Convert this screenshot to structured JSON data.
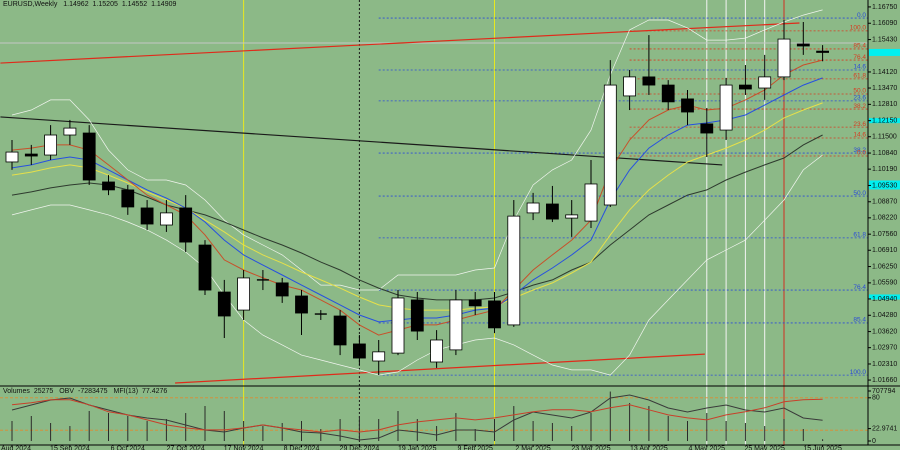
{
  "chart_data": {
    "type": "candlestick",
    "title": "EURUSD,Weekly",
    "categories": [
      "Aug 2024",
      null,
      null,
      "15 Sep 2024",
      null,
      null,
      "6 Oct 2024",
      null,
      null,
      "27 Oct 2024",
      null,
      null,
      "17 Nov 2024",
      null,
      null,
      "8 Dec 2024",
      null,
      null,
      "29 Dec 2024",
      null,
      null,
      "19 Jan 2025",
      null,
      null,
      "9 Feb 2025",
      null,
      null,
      "2 Mar 2025",
      null,
      null,
      "23 Mar 2025",
      null,
      null,
      "13 Apr 2025",
      null,
      null,
      "4 May 2025",
      null,
      null,
      "25 May 2025",
      null,
      null,
      "15 Jun 2025"
    ],
    "open": [
      1.1048,
      1.108,
      1.1076,
      1.1157,
      1.1165,
      1.0967,
      1.0935,
      1.0862,
      1.0793,
      1.0862,
      1.0712,
      1.0522,
      1.0449,
      1.0571,
      1.0559,
      1.0506,
      1.0433,
      1.0425,
      1.0312,
      1.0243,
      1.0275,
      1.049,
      1.0239,
      1.0288,
      1.049,
      1.0486,
      1.0389,
      1.0842,
      1.0878,
      1.0821,
      1.0809,
      1.0874,
      1.1315,
      1.1392,
      1.1359,
      1.1303,
      1.1202,
      1.1177,
      1.1359,
      1.1347,
      1.1392,
      1.1525,
      1.14962
    ],
    "high": [
      1.1137,
      1.1117,
      1.1197,
      1.1218,
      1.1197,
      1.0995,
      1.0955,
      1.0894,
      1.0894,
      1.0914,
      1.0732,
      1.0571,
      1.0611,
      1.0611,
      1.0579,
      1.053,
      1.0449,
      1.0449,
      1.0348,
      1.0328,
      1.053,
      1.0522,
      1.0368,
      1.053,
      1.0522,
      1.0522,
      1.0894,
      1.0923,
      1.0951,
      1.0894,
      1.1056,
      1.146,
      1.142,
      1.1561,
      1.1379,
      1.1339,
      1.1266,
      1.1388,
      1.144,
      1.1481,
      1.1622,
      1.1614,
      1.15205
    ],
    "low": [
      1.1016,
      1.1036,
      1.1056,
      1.1117,
      1.0955,
      1.0914,
      1.0834,
      1.0773,
      1.0765,
      1.0684,
      1.051,
      1.0336,
      1.0409,
      1.053,
      1.0478,
      1.0348,
      1.0409,
      1.0267,
      1.0227,
      1.0186,
      1.0267,
      1.0328,
      1.0215,
      1.0267,
      1.0429,
      1.0356,
      1.0381,
      1.0813,
      1.0805,
      1.0745,
      1.0781,
      1.0866,
      1.1258,
      1.1319,
      1.1258,
      1.1197,
      1.1068,
      1.1137,
      1.1319,
      1.1299,
      1.1379,
      1.1481,
      1.14552
    ],
    "close": [
      1.1088,
      1.1072,
      1.1157,
      1.1185,
      1.0975,
      1.0935,
      1.0866,
      1.0797,
      1.0842,
      1.0724,
      1.053,
      1.0425,
      1.0579,
      1.0567,
      1.0506,
      1.0437,
      1.0429,
      1.0308,
      1.0255,
      1.028,
      1.0498,
      1.0364,
      1.0328,
      1.049,
      1.0466,
      1.0377,
      1.0829,
      1.0882,
      1.0817,
      1.0834,
      1.0959,
      1.1359,
      1.1392,
      1.1359,
      1.1291,
      1.125,
      1.1165,
      1.1359,
      1.1343,
      1.1392,
      1.1545,
      1.1517,
      1.14909
    ],
    "up_color": "#ffffff",
    "down_color": "#000000",
    "ylim": [
      1.0146,
      1.1703
    ],
    "yticks": [
      {
        "value": 1.1675,
        "label": "1.16750"
      },
      {
        "value": 1.1609,
        "label": "1.16090"
      },
      {
        "value": 1.1543,
        "label": "1.15430"
      },
      {
        "value": 1.1412,
        "label": "1.14120"
      },
      {
        "value": 1.1347,
        "label": "1.13470"
      },
      {
        "value": 1.1281,
        "label": "1.12810"
      },
      {
        "value": 1.1215,
        "label": "1.12150"
      },
      {
        "value": 1.115,
        "label": "1.11500"
      },
      {
        "value": 1.1084,
        "label": "1.10840"
      },
      {
        "value": 1.1019,
        "label": "1.10190"
      },
      {
        "value": 1.0953,
        "label": "1.09530"
      },
      {
        "value": 1.0887,
        "label": "1.08870"
      },
      {
        "value": 1.0822,
        "label": "1.08220"
      },
      {
        "value": 1.0756,
        "label": "1.07560"
      },
      {
        "value": 1.0691,
        "label": "1.06910"
      },
      {
        "value": 1.0625,
        "label": "1.06250"
      },
      {
        "value": 1.0559,
        "label": "1.05590"
      },
      {
        "value": 1.0494,
        "label": "1.04940"
      },
      {
        "value": 1.0428,
        "label": "1.04280"
      },
      {
        "value": 1.0362,
        "label": "1.03620"
      },
      {
        "value": 1.0297,
        "label": "1.02970"
      },
      {
        "value": 1.0231,
        "label": "1.02310"
      },
      {
        "value": 1.0166,
        "label": "1.01660"
      }
    ],
    "grid": false,
    "lines": [
      {
        "color": "#f0f4ee",
        "values": [
          1.1238,
          1.1258,
          1.1299,
          1.1299,
          1.1218,
          1.1096,
          1.1016,
          1.0975,
          1.0975,
          1.0955,
          1.0894,
          1.0813,
          1.0753,
          1.0712,
          1.0672,
          1.0611,
          1.055,
          1.055,
          1.053,
          1.053,
          1.0591,
          1.0591,
          1.0591,
          1.0591,
          1.0611,
          1.0619,
          1.0813,
          1.0955,
          1.1016,
          1.1056,
          1.1177,
          1.14,
          1.1582,
          1.1622,
          1.1622,
          1.159,
          1.1541,
          1.1541,
          1.1549,
          1.1582,
          1.1614,
          1.1642,
          1.1663
        ]
      },
      {
        "color": "#f0f4ee",
        "values": [
          1.0834,
          1.0854,
          1.0874,
          1.0874,
          1.0854,
          1.0834,
          1.0805,
          1.0773,
          1.0732,
          1.0684,
          1.0619,
          1.051,
          1.0409,
          1.0348,
          1.0308,
          1.0267,
          1.0247,
          1.0227,
          1.0207,
          1.0186,
          1.0199,
          1.0247,
          1.0288,
          1.0308,
          1.0328,
          1.0336,
          1.0308,
          1.0267,
          1.0227,
          1.0207,
          1.0207,
          1.0186,
          1.0267,
          1.0409,
          1.049,
          1.0571,
          1.0652,
          1.0692,
          1.0732,
          1.0813,
          1.0894,
          1.1016,
          1.1076
        ]
      },
      {
        "color": "#2e3a2e",
        "values": [
          1.0914,
          1.0927,
          1.0943,
          1.0955,
          1.0963,
          1.0955,
          1.0935,
          1.0906,
          1.0874,
          1.0854,
          1.0834,
          1.0805,
          1.0773,
          1.0741,
          1.0712,
          1.068,
          1.0643,
          1.0611,
          1.0571,
          1.0538,
          1.051,
          1.0498,
          1.049,
          1.049,
          1.049,
          1.0498,
          1.0522,
          1.055,
          1.0571,
          1.0611,
          1.0643,
          1.0712,
          1.0773,
          1.0834,
          1.0874,
          1.0914,
          1.0935,
          1.0975,
          1.1007,
          1.1036,
          1.1064,
          1.1117,
          1.1157
        ]
      },
      {
        "color": "#e6e04a",
        "values": [
          1.0995,
          1.1007,
          1.1024,
          1.1036,
          1.1024,
          1.0995,
          1.0963,
          1.0927,
          1.0894,
          1.0862,
          1.0813,
          1.0765,
          1.0712,
          1.0672,
          1.0639,
          1.0603,
          1.0571,
          1.0538,
          1.0502,
          1.047,
          1.0457,
          1.0449,
          1.0449,
          1.0449,
          1.0457,
          1.0462,
          1.0498,
          1.053,
          1.0559,
          1.0599,
          1.0643,
          1.0753,
          1.0854,
          1.0935,
          1.0995,
          1.1048,
          1.1076,
          1.1104,
          1.1137,
          1.1177,
          1.1226,
          1.1258,
          1.1287
        ]
      },
      {
        "color": "#2750e0",
        "values": [
          1.1024,
          1.1036,
          1.1056,
          1.1068,
          1.1056,
          1.1016,
          1.0975,
          1.0935,
          1.0902,
          1.0862,
          1.0805,
          1.0732,
          1.0672,
          1.0631,
          1.0591,
          1.055,
          1.051,
          1.047,
          1.0429,
          1.0401,
          1.0409,
          1.0417,
          1.0417,
          1.0429,
          1.0449,
          1.0457,
          1.051,
          1.0571,
          1.0619,
          1.0672,
          1.0732,
          1.0894,
          1.1016,
          1.1104,
          1.1157,
          1.1197,
          1.1206,
          1.1218,
          1.1238,
          1.1278,
          1.1319,
          1.1359,
          1.1388
        ]
      },
      {
        "color": "#c8502a",
        "values": [
          1.1096,
          1.1104,
          1.1117,
          1.1117,
          1.1096,
          1.1036,
          1.0975,
          1.0914,
          1.0874,
          1.0834,
          1.0753,
          1.0652,
          1.0611,
          1.0579,
          1.055,
          1.053,
          1.049,
          1.0449,
          1.0389,
          1.0348,
          1.0368,
          1.0389,
          1.0389,
          1.0409,
          1.0429,
          1.0449,
          1.053,
          1.0611,
          1.0672,
          1.0732,
          1.0813,
          1.1016,
          1.1137,
          1.1218,
          1.1258,
          1.1278,
          1.1258,
          1.1266,
          1.1299,
          1.1339,
          1.14,
          1.144,
          1.146
        ]
      }
    ],
    "trendlines": [
      {
        "color": "#e02a1a",
        "points": [
          [
            -0.6,
            1.1448
          ],
          [
            40.8,
            1.161
          ]
        ]
      },
      {
        "color": "#e02a1a",
        "points": [
          [
            8.45,
            1.0154
          ],
          [
            35.9,
            1.0271
          ]
        ]
      },
      {
        "color": "#1a1a1a",
        "points": [
          [
            -0.6,
            1.123
          ],
          [
            36.8,
            1.1036
          ]
        ]
      }
    ],
    "vlines": [
      {
        "at": 12,
        "color": "#e8e820",
        "dash": false
      },
      {
        "at": 25,
        "color": "#e8e820",
        "dash": false
      },
      {
        "at": 18,
        "color": "#1a1a1a",
        "dash": true
      },
      {
        "at": 40,
        "color": "#d03020",
        "dash": false
      },
      {
        "at": 36,
        "color": "#f4f4f4",
        "dash": false
      },
      {
        "at": 37,
        "color": "#f4f4f4",
        "dash": false
      },
      {
        "at": 38,
        "color": "#f4f4f4",
        "dash": false
      },
      {
        "at": 39,
        "color": "#f4f4f4",
        "dash": false
      }
    ],
    "hlines": [
      {
        "value": 1.1529,
        "color": "#c4c8c4"
      }
    ],
    "axis_markers": {
      "color": "#00f0f0",
      "values": [
        1.1215,
        1.0963,
        1.0947,
        1.0502
      ]
    },
    "fib": [
      {
        "color": "#2a4ad8",
        "start": 19,
        "levels": [
          {
            "label": "0.0",
            "value": 1.163
          },
          {
            "label": "14.6",
            "value": 1.142
          },
          {
            "label": "23.6",
            "value": 1.1295
          },
          {
            "label": "38.2",
            "value": 1.1084
          },
          {
            "label": "50.0",
            "value": 1.091
          },
          {
            "label": "61.8",
            "value": 1.0741
          },
          {
            "label": "76.4",
            "value": 1.053
          },
          {
            "label": "85.4",
            "value": 1.0397
          },
          {
            "label": "100.0",
            "value": 1.0186
          }
        ]
      },
      {
        "color": "#d83a20",
        "start": 32,
        "levels": [
          {
            "label": "100.0",
            "value": 1.1578
          },
          {
            "label": "85.4",
            "value": 1.1505
          },
          {
            "label": "76.4",
            "value": 1.146
          },
          {
            "label": "61.8",
            "value": 1.1384
          },
          {
            "label": "50.0",
            "value": 1.1323
          },
          {
            "label": "38.2",
            "value": 1.1262
          },
          {
            "label": "23.6",
            "value": 1.1189
          },
          {
            "label": "14.6",
            "value": 1.1145
          },
          {
            "label": "0.0",
            "value": 1.1072
          }
        ]
      }
    ],
    "indicators": {
      "volume_label": "Volumes",
      "volume_color": "#2a2a2a",
      "volumes": [
        283000,
        354000,
        255000,
        212000,
        425000,
        396000,
        354000,
        283000,
        311000,
        396000,
        495000,
        425000,
        283000,
        212000,
        255000,
        283000,
        170000,
        311000,
        354000,
        311000,
        425000,
        311000,
        212000,
        396000,
        170000,
        311000,
        495000,
        283000,
        255000,
        212000,
        396000,
        700000,
        538000,
        495000,
        354000,
        283000,
        396000,
        283000,
        255000,
        212000,
        311000,
        170000,
        25275
      ],
      "vol_ylim": [
        0,
        707794
      ],
      "vol_ticks": [
        707794
      ],
      "obv_label": "OBV",
      "obv_color": "#3a3a3a",
      "obv": [
        -3520000,
        -1670000,
        190000,
        930000,
        -1670000,
        -3520000,
        -5370000,
        -6480000,
        -7220000,
        -9070000,
        -10930000,
        -11670000,
        -10190000,
        -9070000,
        -10190000,
        -11670000,
        -12040000,
        -13150000,
        -14630000,
        -13890000,
        -10930000,
        -11670000,
        -12780000,
        -10930000,
        -10930000,
        -11670000,
        -7220000,
        -4260000,
        -5370000,
        -6480000,
        -4260000,
        930000,
        2040000,
        190000,
        -2780000,
        -4260000,
        -2780000,
        -1670000,
        -3520000,
        -4260000,
        -2780000,
        -6480000,
        -7283475
      ],
      "obv_lim": [
        -15000000,
        5000000
      ],
      "mfi_label": "MFI(13)",
      "mfi_color": "#c8402a",
      "mfi": [
        67.0,
        70.7,
        76.3,
        76.3,
        67.0,
        54.0,
        48.4,
        39.1,
        29.8,
        24.2,
        20.5,
        20.5,
        24.2,
        29.8,
        24.2,
        20.5,
        16.7,
        20.5,
        16.7,
        20.5,
        29.8,
        35.3,
        39.1,
        42.8,
        39.1,
        42.8,
        48.4,
        54.0,
        57.7,
        57.7,
        54.0,
        61.4,
        67.0,
        57.7,
        48.4,
        42.8,
        39.1,
        48.4,
        54.0,
        61.4,
        72.6,
        76.3,
        77.4276
      ],
      "mfi_ylim": [
        0,
        100
      ],
      "mfi_ticks": [
        80,
        22.9741,
        0
      ],
      "mfi_levels": [
        80,
        20
      ],
      "level_color": "#e08a30"
    }
  }
}
